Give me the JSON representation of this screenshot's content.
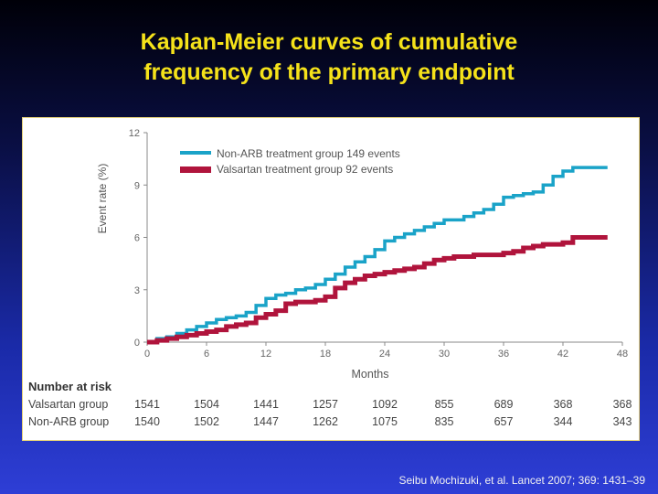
{
  "slide": {
    "title_line1": "Kaplan-Meier curves of cumulative",
    "title_line2": "frequency of the primary endpoint",
    "citation": "Seibu Mochizuki, et al. Lancet 2007; 369: 1431–39",
    "title_color": "#f5e21a"
  },
  "chart_data": {
    "type": "line",
    "xlabel": "Months",
    "ylabel": "Event rate (%)",
    "xlim": [
      0,
      48
    ],
    "ylim": [
      0,
      12
    ],
    "xticks": [
      0,
      6,
      12,
      18,
      24,
      30,
      36,
      42,
      48
    ],
    "yticks": [
      0,
      3,
      6,
      9,
      12
    ],
    "grid": false,
    "legend_position": "top-left",
    "series": [
      {
        "name": "Non-ARB treatment group 149 events",
        "color": "#1aa3c8",
        "x": [
          0,
          1,
          2,
          3,
          4,
          5,
          6,
          7,
          8,
          9,
          10,
          11,
          12,
          13,
          14,
          15,
          16,
          17,
          18,
          19,
          20,
          21,
          22,
          23,
          24,
          25,
          26,
          27,
          28,
          29,
          30,
          31,
          32,
          33,
          34,
          35,
          36,
          37,
          38,
          39,
          40,
          41,
          42,
          43,
          44,
          45,
          46.5
        ],
        "y": [
          0.0,
          0.2,
          0.3,
          0.5,
          0.7,
          0.9,
          1.1,
          1.3,
          1.4,
          1.5,
          1.7,
          2.1,
          2.5,
          2.7,
          2.8,
          3.0,
          3.1,
          3.3,
          3.6,
          3.9,
          4.3,
          4.6,
          4.9,
          5.3,
          5.8,
          6.0,
          6.2,
          6.4,
          6.6,
          6.8,
          7.0,
          7.0,
          7.2,
          7.4,
          7.6,
          7.9,
          8.3,
          8.4,
          8.5,
          8.6,
          9.0,
          9.5,
          9.8,
          10.0,
          10.0,
          10.0,
          10.0
        ]
      },
      {
        "name": "Valsartan treatment group 92 events",
        "color": "#b0143c",
        "x": [
          0,
          1,
          2,
          3,
          4,
          5,
          6,
          7,
          8,
          9,
          10,
          11,
          12,
          13,
          14,
          15,
          16,
          17,
          18,
          19,
          20,
          21,
          22,
          23,
          24,
          25,
          26,
          27,
          28,
          29,
          30,
          31,
          32,
          33,
          34,
          35,
          36,
          37,
          38,
          39,
          40,
          41,
          42,
          43,
          44,
          45,
          46.5
        ],
        "y": [
          0.0,
          0.1,
          0.2,
          0.3,
          0.4,
          0.5,
          0.6,
          0.7,
          0.9,
          1.0,
          1.1,
          1.4,
          1.6,
          1.8,
          2.2,
          2.3,
          2.3,
          2.4,
          2.6,
          3.1,
          3.4,
          3.6,
          3.8,
          3.9,
          4.0,
          4.1,
          4.2,
          4.3,
          4.5,
          4.7,
          4.8,
          4.9,
          4.9,
          5.0,
          5.0,
          5.0,
          5.1,
          5.2,
          5.4,
          5.5,
          5.6,
          5.6,
          5.7,
          6.0,
          6.0,
          6.0,
          6.0
        ]
      }
    ],
    "risk_table": {
      "heading": "Number at risk",
      "months": [
        0,
        6,
        12,
        18,
        24,
        30,
        36,
        42,
        48
      ],
      "rows": [
        {
          "label": "Valsartan group",
          "values": [
            "1541",
            "1504",
            "1441",
            "1257",
            "1092",
            "855",
            "689",
            "368",
            "368"
          ]
        },
        {
          "label": "Non-ARB group",
          "values": [
            "1540",
            "1502",
            "1447",
            "1262",
            "1075",
            "835",
            "657",
            "344",
            "343"
          ]
        }
      ]
    }
  }
}
